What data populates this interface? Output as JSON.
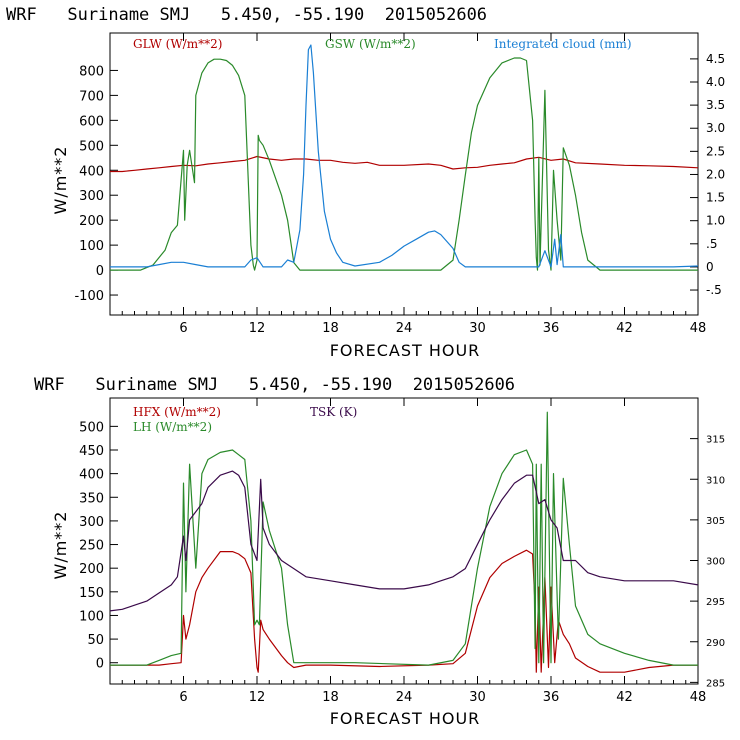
{
  "colors": {
    "red": "#b00000",
    "green": "#2a8a2a",
    "blue": "#1a7fd4",
    "purple": "#3a0a4a"
  },
  "chart_data": [
    {
      "type": "line",
      "title": "WRF   Suriname SMJ   5.450, -55.190  2015052606",
      "xlabel": "FORECAST HOUR",
      "ylabel": "W/m**2",
      "xlim": [
        0,
        48
      ],
      "ylim": [
        -180,
        950
      ],
      "y2lim": [
        -1.04,
        5.06
      ],
      "xticks": [
        "6",
        "12",
        "18",
        "24",
        "30",
        "36",
        "42",
        "48"
      ],
      "xtick_values": [
        6,
        12,
        18,
        24,
        30,
        36,
        42,
        48
      ],
      "yticks": [
        "-100",
        "0",
        "100",
        "200",
        "300",
        "400",
        "500",
        "600",
        "700",
        "800"
      ],
      "ytick_values": [
        -100,
        0,
        100,
        200,
        300,
        400,
        500,
        600,
        700,
        800
      ],
      "y2ticks": [
        "-.5",
        "0",
        ".5",
        "1.0",
        "1.5",
        "2.0",
        "2.5",
        "3.0",
        "3.5",
        "4.0",
        "4.5"
      ],
      "y2tick_values": [
        -0.5,
        0,
        0.5,
        1.0,
        1.5,
        2.0,
        2.5,
        3.0,
        3.5,
        4.0,
        4.5
      ],
      "grid": false,
      "legend": "top",
      "series": [
        {
          "name": "GLW (W/m**2)",
          "color": "#b00000",
          "axis": "left",
          "x": [
            0,
            1,
            2,
            3,
            4,
            5,
            6,
            7,
            8,
            9,
            10,
            11,
            12,
            13,
            14,
            15,
            16,
            17,
            18,
            19,
            20,
            21,
            22,
            24,
            26,
            27,
            28,
            29,
            30,
            31,
            32,
            33,
            34,
            35,
            36,
            37,
            38,
            40,
            42,
            44,
            46,
            48
          ],
          "y": [
            395,
            395,
            400,
            405,
            410,
            415,
            420,
            418,
            425,
            430,
            435,
            440,
            455,
            445,
            440,
            445,
            445,
            440,
            440,
            432,
            428,
            432,
            420,
            420,
            425,
            420,
            405,
            410,
            412,
            420,
            425,
            430,
            445,
            452,
            440,
            445,
            430,
            425,
            420,
            418,
            415,
            410
          ]
        },
        {
          "name": "GSW (W/m**2)",
          "color": "#2a8a2a",
          "axis": "left",
          "x": [
            0,
            2.5,
            3.5,
            4.5,
            5,
            5.5,
            6,
            6.1,
            6.3,
            6.5,
            6.9,
            7,
            7.5,
            8,
            8.5,
            9,
            9.5,
            10,
            10.5,
            11,
            11.5,
            11.7,
            11.8,
            12,
            12.1,
            12.2,
            12.5,
            13,
            14,
            14.5,
            15,
            15.5,
            16,
            27,
            27.5,
            28,
            28.5,
            29,
            29.5,
            30,
            31,
            32,
            33,
            33.5,
            34,
            34.5,
            34.7,
            34.8,
            34.9,
            35,
            35.1,
            35.5,
            35.8,
            36,
            36.2,
            36.5,
            36.8,
            37,
            37.5,
            38,
            38.5,
            39,
            39.5,
            40,
            48
          ],
          "y": [
            0,
            0,
            20,
            80,
            150,
            180,
            480,
            200,
            420,
            480,
            350,
            700,
            790,
            830,
            845,
            845,
            840,
            820,
            780,
            700,
            100,
            20,
            0,
            40,
            540,
            520,
            500,
            440,
            300,
            200,
            30,
            0,
            0,
            0,
            20,
            40,
            200,
            380,
            550,
            660,
            770,
            830,
            850,
            850,
            840,
            600,
            200,
            50,
            0,
            450,
            20,
            720,
            80,
            0,
            400,
            200,
            40,
            490,
            420,
            300,
            150,
            40,
            20,
            0,
            0
          ]
        },
        {
          "name": "Integrated cloud (mm)",
          "color": "#1a7fd4",
          "axis": "right",
          "x": [
            0,
            3,
            4,
            5,
            6,
            7,
            8,
            11,
            11.5,
            12,
            12.5,
            14,
            14.5,
            15,
            15.5,
            15.8,
            16,
            16.2,
            16.4,
            16.6,
            17,
            17.5,
            18,
            18.5,
            19,
            20,
            22,
            23,
            24,
            25,
            26,
            26.5,
            27,
            28,
            28.5,
            29,
            30,
            33,
            34,
            35,
            35.5,
            36,
            36.3,
            36.5,
            36.8,
            37,
            38,
            46,
            48
          ],
          "y": [
            0,
            0,
            0.05,
            0.1,
            0.1,
            0.05,
            0,
            0,
            0.15,
            0.2,
            0,
            0,
            0.15,
            0.1,
            0.8,
            2.0,
            3.5,
            4.7,
            4.8,
            4.2,
            2.5,
            1.2,
            0.6,
            0.3,
            0.1,
            0.02,
            0.1,
            0.25,
            0.45,
            0.6,
            0.75,
            0.78,
            0.7,
            0.4,
            0.1,
            0,
            0,
            0,
            0,
            0,
            0.35,
            0,
            0.6,
            0.05,
            0.7,
            0,
            0,
            0,
            0.02
          ]
        }
      ]
    },
    {
      "type": "line",
      "title": "WRF   Suriname SMJ   5.450, -55.190  2015052606",
      "xlabel": "FORECAST HOUR",
      "ylabel": "W/m**2",
      "xlim": [
        0,
        48
      ],
      "ylim": [
        -45,
        560
      ],
      "y2lim": [
        284.8,
        320.0
      ],
      "xticks": [
        "6",
        "12",
        "18",
        "24",
        "30",
        "36",
        "42",
        "48"
      ],
      "xtick_values": [
        6,
        12,
        18,
        24,
        30,
        36,
        42,
        48
      ],
      "yticks": [
        "0",
        "50",
        "100",
        "150",
        "200",
        "250",
        "300",
        "350",
        "400",
        "450",
        "500"
      ],
      "ytick_values": [
        0,
        50,
        100,
        150,
        200,
        250,
        300,
        350,
        400,
        450,
        500
      ],
      "y2ticks": [
        "285",
        "290",
        "295",
        "300",
        "305",
        "310",
        "315"
      ],
      "y2tick_values": [
        285,
        290,
        295,
        300,
        305,
        310,
        315
      ],
      "grid": false,
      "legend": "top-left",
      "series": [
        {
          "name": "HFX (W/m**2)",
          "color": "#b00000",
          "axis": "left",
          "x": [
            0,
            2,
            4,
            5,
            5.8,
            6,
            6.2,
            6.5,
            7,
            7.5,
            8,
            9,
            10,
            10.5,
            11,
            11.5,
            11.8,
            12,
            12.1,
            12.3,
            12.5,
            13,
            14,
            14.5,
            15,
            16,
            18,
            22,
            26,
            28,
            29,
            30,
            31,
            32,
            33,
            34,
            34.5,
            34.7,
            34.8,
            35,
            35.2,
            35.5,
            35.8,
            36,
            36.3,
            36.6,
            37,
            37.5,
            38,
            39,
            40,
            42,
            44,
            46,
            48
          ],
          "y": [
            -5,
            -5,
            -5,
            -2,
            0,
            100,
            50,
            80,
            150,
            180,
            200,
            235,
            235,
            230,
            220,
            190,
            50,
            -10,
            -20,
            90,
            70,
            50,
            15,
            0,
            -10,
            -5,
            -5,
            -8,
            -5,
            -2,
            20,
            120,
            180,
            210,
            225,
            238,
            230,
            120,
            -20,
            160,
            -20,
            180,
            -10,
            160,
            0,
            90,
            60,
            40,
            10,
            -8,
            -20,
            -20,
            -10,
            -5,
            -5
          ]
        },
        {
          "name": "LH (W/m**2)",
          "color": "#2a8a2a",
          "axis": "left",
          "x": [
            0,
            3,
            4,
            5,
            5.8,
            6,
            6.2,
            6.5,
            7,
            7.5,
            8,
            9,
            10,
            10.5,
            11,
            11.5,
            11.8,
            12,
            12.2,
            12.5,
            13,
            13.5,
            14,
            14.5,
            15,
            16,
            20,
            26,
            28,
            29,
            30,
            31,
            32,
            33,
            34,
            34.5,
            34.7,
            34.8,
            35,
            35.2,
            35.4,
            35.7,
            36,
            36.2,
            36.6,
            37,
            37.5,
            38,
            39,
            40,
            42,
            44,
            46,
            48
          ],
          "y": [
            -5,
            -5,
            5,
            15,
            20,
            380,
            150,
            420,
            200,
            400,
            430,
            445,
            450,
            440,
            430,
            300,
            80,
            90,
            80,
            340,
            280,
            240,
            200,
            80,
            0,
            0,
            0,
            -5,
            5,
            40,
            200,
            330,
            400,
            440,
            450,
            420,
            30,
            420,
            0,
            420,
            0,
            530,
            0,
            400,
            50,
            390,
            250,
            120,
            60,
            40,
            20,
            5,
            -5,
            -5
          ]
        },
        {
          "name": "TSK (K)",
          "color": "#3a0a4a",
          "axis": "right",
          "x": [
            0,
            1,
            2,
            3,
            4,
            5,
            5.5,
            6,
            6.2,
            6.5,
            7,
            7.5,
            8,
            9,
            10,
            10.5,
            11,
            11.5,
            12,
            12.3,
            12.5,
            13,
            14,
            15,
            16,
            18,
            20,
            22,
            24,
            26,
            27,
            28,
            29,
            30,
            31,
            32,
            33,
            34,
            34.5,
            35,
            35.5,
            36,
            36.5,
            37,
            38,
            39,
            40,
            42,
            44,
            46,
            48
          ],
          "y": [
            293.8,
            294,
            294.5,
            295,
            296,
            297,
            298,
            303,
            300,
            305,
            306,
            307,
            309,
            310.5,
            311,
            310.5,
            309,
            302,
            300,
            310,
            304,
            302,
            300,
            299,
            298,
            297.5,
            297,
            296.5,
            296.5,
            297,
            297.5,
            298,
            299,
            302,
            305,
            307.5,
            309.5,
            310.5,
            310.5,
            307,
            307.5,
            305,
            304,
            300,
            300,
            298.5,
            298,
            297.5,
            297.5,
            297.5,
            297
          ]
        }
      ]
    }
  ]
}
